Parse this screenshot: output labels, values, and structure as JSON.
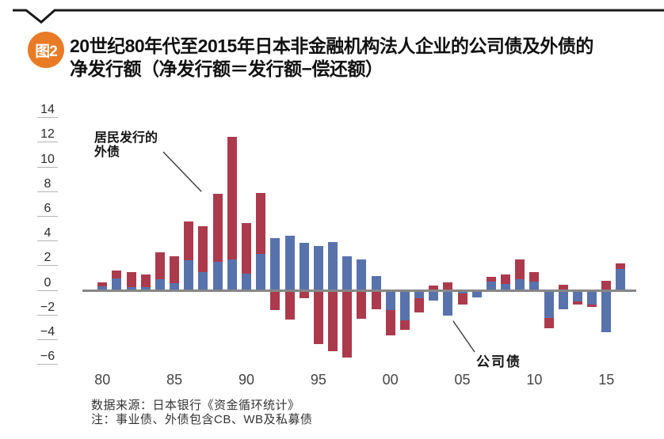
{
  "figure": {
    "badge": "图2",
    "title_line1": "20世纪80年代至2015年日本非金融机构法人企业的公司债及外债的",
    "title_line2": "净发行额（净发行额＝发行额−偿还额）",
    "source": "数据来源：日本银行《资金循环统计》",
    "note": "注：事业债、外债包含CB、WB及私募债"
  },
  "annotations": {
    "foreign_debt_label": "居民发行的\n外债",
    "corporate_bond_label": "公司债"
  },
  "colors": {
    "badge_orange": "#E97B26",
    "bar_blue": "#5873AC",
    "bar_red": "#AC3A4D",
    "axis_gray": "#868686",
    "tick_underline_gray": "#B3B3B3",
    "text_dark": "#141414"
  },
  "chart_data": {
    "type": "bar",
    "stacked": true,
    "title": "20世纪80年代至2015年日本非金融机构法人企业的公司债及外债的净发行额（净发行额＝发行额−偿还额）",
    "xlabel": "",
    "ylabel": "",
    "ylim": [
      -6.5,
      15
    ],
    "gridlines": false,
    "legend": "in-plot annotations with arrows",
    "x": [
      1980,
      1981,
      1982,
      1983,
      1984,
      1985,
      1986,
      1987,
      1988,
      1989,
      1990,
      1991,
      1992,
      1993,
      1994,
      1995,
      1996,
      1997,
      1998,
      1999,
      2000,
      2001,
      2002,
      2003,
      2004,
      2005,
      2006,
      2007,
      2008,
      2009,
      2010,
      2011,
      2012,
      2013,
      2014,
      2015,
      2016
    ],
    "x_tick_years": [
      1980,
      1985,
      1990,
      1995,
      2000,
      2005,
      2010,
      2015
    ],
    "x_tick_labels": [
      "80",
      "85",
      "90",
      "95",
      "00",
      "05",
      "10",
      "15"
    ],
    "y_ticks": [
      14,
      12,
      10,
      8,
      6,
      4,
      2,
      0,
      -2,
      -4,
      -6
    ],
    "series": [
      {
        "name": "公司债",
        "key": "corporate-bond",
        "color": "#5873AC",
        "values": [
          0.35,
          1.0,
          0.3,
          0.3,
          0.95,
          0.6,
          2.45,
          1.5,
          2.35,
          2.55,
          1.4,
          3.0,
          4.25,
          4.45,
          3.9,
          3.6,
          3.95,
          2.8,
          2.55,
          1.2,
          -1.55,
          -2.4,
          -0.6,
          -0.8,
          -2.05,
          -0.2,
          -0.55,
          0.75,
          0.55,
          0.95,
          0.75,
          -2.2,
          -1.5,
          -0.85,
          -1.1,
          -3.35,
          1.75
        ]
      },
      {
        "name": "居民发行的外债",
        "key": "foreign-debt",
        "color": "#AC3A4D",
        "values": [
          0.35,
          0.65,
          1.2,
          1.0,
          2.15,
          2.2,
          3.15,
          3.75,
          5.5,
          9.9,
          4.05,
          4.9,
          -1.6,
          -2.35,
          -0.6,
          -4.35,
          -4.9,
          -5.4,
          -2.3,
          -1.5,
          -2.1,
          -0.75,
          -1.15,
          0.4,
          0.65,
          -0.95,
          0,
          0.35,
          0.75,
          1.6,
          0.75,
          -0.85,
          0.5,
          -0.3,
          -0.2,
          0.8,
          0.45
        ]
      }
    ]
  }
}
